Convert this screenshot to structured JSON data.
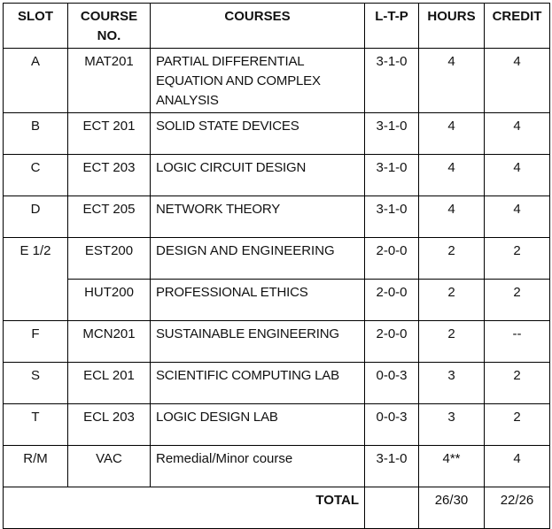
{
  "headers": [
    "SLOT",
    "COURSE NO.",
    "COURSES",
    "L-T-P",
    "HOURS",
    "CREDIT"
  ],
  "rows": [
    {
      "slot": "A",
      "code": "MAT201",
      "course": "PARTIAL DIFFERENTIAL EQUATION AND COMPLEX ANALYSIS",
      "ltp": "3-1-0",
      "hours": "4",
      "credit": "4"
    },
    {
      "slot": "B",
      "code": "ECT 201",
      "course": "SOLID STATE DEVICES",
      "ltp": "3-1-0",
      "hours": "4",
      "credit": "4"
    },
    {
      "slot": "C",
      "code": "ECT 203",
      "course": "LOGIC CIRCUIT DESIGN",
      "ltp": "3-1-0",
      "hours": "4",
      "credit": "4"
    },
    {
      "slot": "D",
      "code": "ECT 205",
      "course": "NETWORK THEORY",
      "ltp": "3-1-0",
      "hours": "4",
      "credit": "4"
    },
    {
      "slot": "E 1/2",
      "code": "EST200",
      "course": "DESIGN AND ENGINEERING",
      "ltp": "2-0-0",
      "hours": "2",
      "credit": "2"
    },
    {
      "slot": "",
      "code": "HUT200",
      "course": "PROFESSIONAL ETHICS",
      "ltp": "2-0-0",
      "hours": "2",
      "credit": "2"
    },
    {
      "slot": "F",
      "code": "MCN201",
      "course": "SUSTAINABLE ENGINEERING",
      "ltp": "2-0-0",
      "hours": "2",
      "credit": "--"
    },
    {
      "slot": "S",
      "code": "ECL 201",
      "course": "SCIENTIFIC COMPUTING LAB",
      "ltp": "0-0-3",
      "hours": "3",
      "credit": "2"
    },
    {
      "slot": "T",
      "code": "ECL 203",
      "course": "LOGIC DESIGN LAB",
      "ltp": "0-0-3",
      "hours": "3",
      "credit": "2"
    },
    {
      "slot": "R/M",
      "code": "VAC",
      "course": "Remedial/Minor course",
      "ltp": "3-1-0",
      "hours": "4**",
      "credit": "4"
    }
  ],
  "total": {
    "label": "TOTAL",
    "hours": "26/30",
    "credit": "22/26"
  }
}
